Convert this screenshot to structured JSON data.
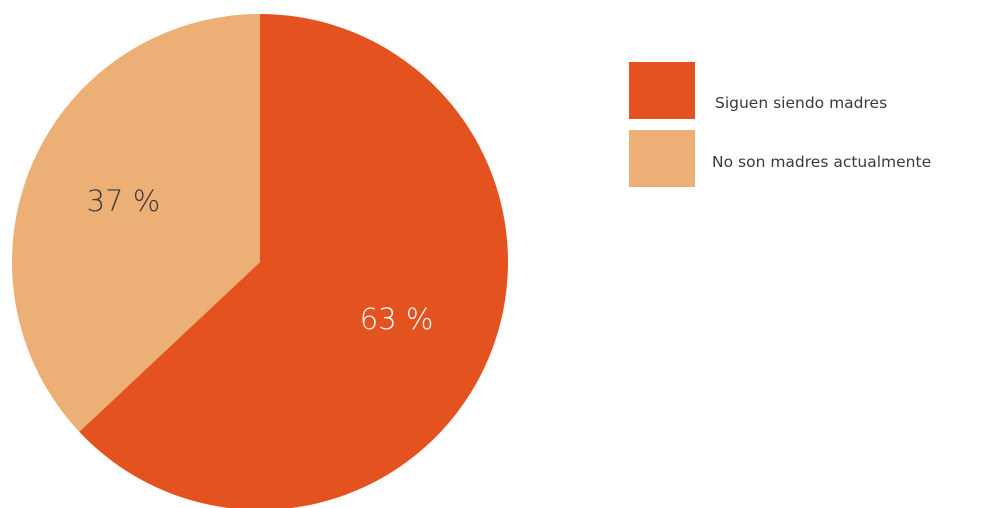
{
  "chart_data": {
    "type": "pie",
    "title": "",
    "series": [
      {
        "name": "Siguen siendo madres",
        "value": 63,
        "label": "63 %",
        "color": "#e45220"
      },
      {
        "name": "No son madres actualmente",
        "value": 37,
        "label": "37 %",
        "color": "#ecaf76"
      }
    ],
    "legend_position": "top-right",
    "label_colors": {
      "dark_slice_text": "#ffffff",
      "light_slice_text": "#3a3a3a"
    }
  }
}
